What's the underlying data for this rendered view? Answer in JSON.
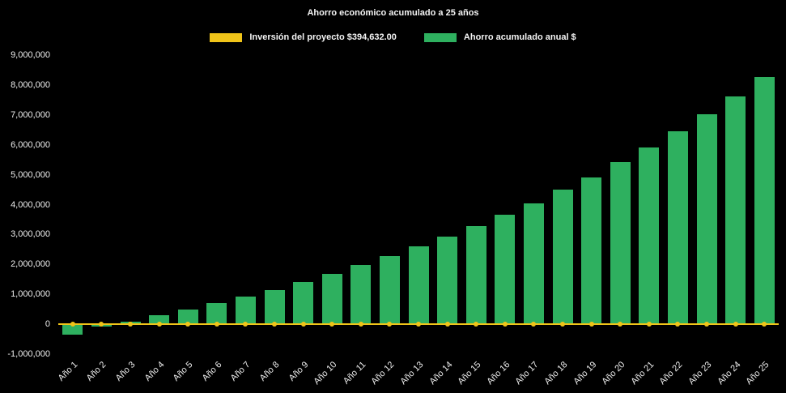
{
  "title": "Ahorro económico acumulado a 25 años",
  "legend": [
    {
      "label": "Inversión del proyecto $394,632.00",
      "color": "#F0C419",
      "type": "line"
    },
    {
      "label": "Ahorro acumulado anual $",
      "color": "#2EB05F",
      "type": "bar"
    }
  ],
  "chart_data": {
    "type": "bar",
    "title": "Ahorro económico acumulado a 25 años",
    "categories": [
      "Año 1",
      "Año 2",
      "Año 3",
      "Año 4",
      "Año 5",
      "Año 6",
      "Año 7",
      "Año 8",
      "Año 9",
      "Año 10",
      "Año 11",
      "Año 12",
      "Año 13",
      "Año 14",
      "Año 15",
      "Año 16",
      "Año 17",
      "Año 18",
      "Año 19",
      "Año 20",
      "Año 21",
      "Año 22",
      "Año 23",
      "Año 24",
      "Año 25"
    ],
    "series": [
      {
        "name": "Inversión del proyecto $394,632.00",
        "type": "line",
        "color": "#F0C419",
        "marker": "circle",
        "values": [
          0,
          0,
          0,
          0,
          0,
          0,
          0,
          0,
          0,
          0,
          0,
          0,
          0,
          0,
          0,
          0,
          0,
          0,
          0,
          0,
          0,
          0,
          0,
          0,
          0
        ]
      },
      {
        "name": "Ahorro acumulado anual $",
        "type": "bar",
        "color": "#2EB05F",
        "values": [
          -350000,
          -80000,
          90000,
          300000,
          490000,
          710000,
          930000,
          1150000,
          1420000,
          1690000,
          1990000,
          2280000,
          2610000,
          2940000,
          3290000,
          3650000,
          4050000,
          4490000,
          4920000,
          5410000,
          5900000,
          6440000,
          7020000,
          7610000,
          8270000
        ]
      }
    ],
    "xlabel": "",
    "ylabel": "",
    "ylim": [
      -1000000,
      9000000
    ],
    "y_ticks": [
      "9,000,000",
      "8,000,000",
      "7,000,000",
      "6,000,000",
      "5,000,000",
      "4,000,000",
      "3,000,000",
      "2,000,000",
      "1,000,000",
      "0",
      "-1,000,000"
    ],
    "grid": false,
    "legend_position": "top",
    "background": "#000000",
    "x_tick_rotation": 45
  }
}
